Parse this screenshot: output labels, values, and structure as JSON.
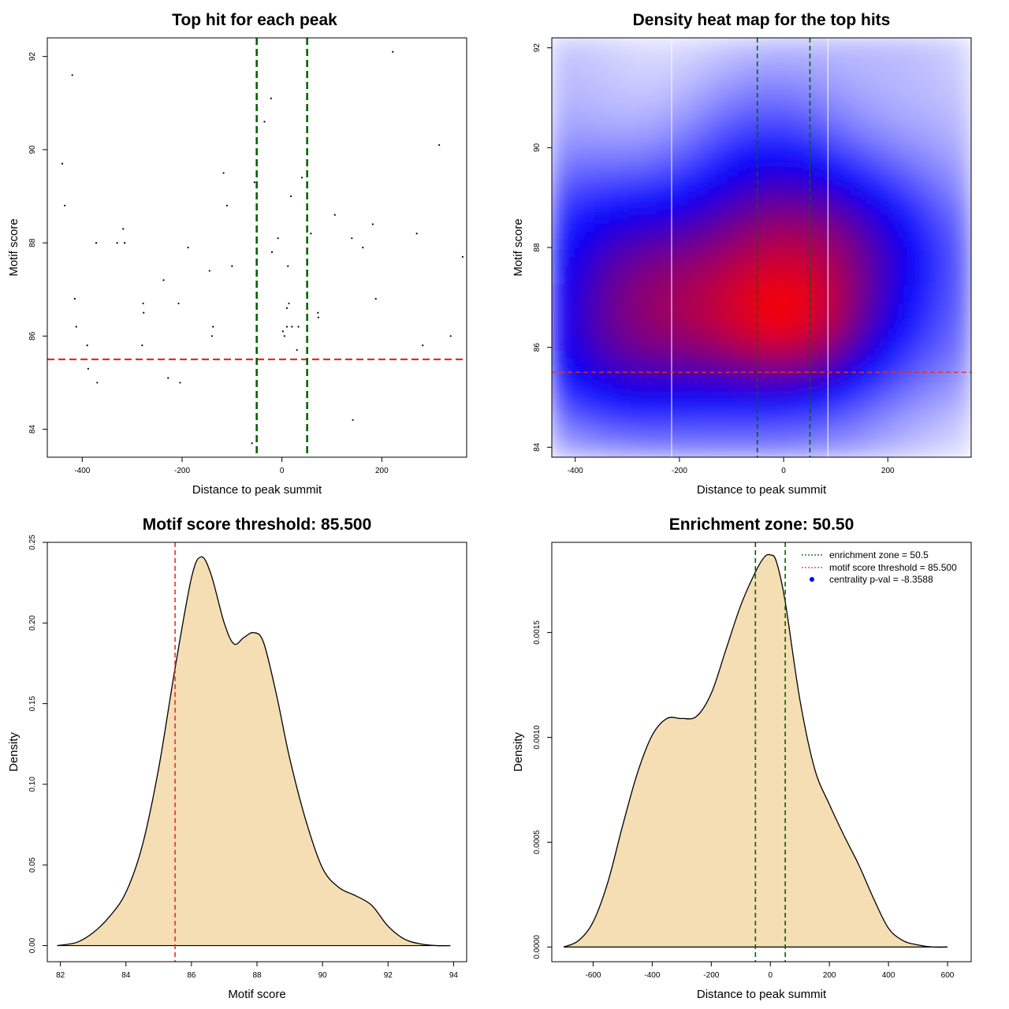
{
  "colors": {
    "threshold_line": "#e03030",
    "zone_line": "#006400",
    "density_fill": "#f5deb3",
    "heat_low": "#ffffff",
    "heat_mid": "#0000ff",
    "heat_high": "#ff0000",
    "centrality_point": "#0000ff"
  },
  "chart_data": [
    {
      "type": "scatter",
      "title": "Top hit for each peak",
      "xlabel": "Distance to peak summit",
      "ylabel": "Motif score",
      "xlim": [
        -470,
        370
      ],
      "ylim": [
        83.4,
        92.4
      ],
      "xticks": [
        -400,
        -200,
        0,
        200
      ],
      "xtick_labels": [
        "-400",
        "-200",
        "0",
        "200"
      ],
      "yticks": [
        84,
        86,
        88,
        90,
        92
      ],
      "ytick_labels": [
        "84",
        "86",
        "88",
        "90",
        "92"
      ],
      "hlines": [
        85.5
      ],
      "vlines": [
        -50.5,
        50.5
      ],
      "points": [
        [
          -420,
          91.6
        ],
        [
          -440,
          89.7
        ],
        [
          -435,
          88.8
        ],
        [
          -415,
          86.8
        ],
        [
          -412,
          86.2
        ],
        [
          -390,
          85.8
        ],
        [
          -388,
          85.3
        ],
        [
          -372,
          88.0
        ],
        [
          -370,
          85.0
        ],
        [
          -330,
          88.0
        ],
        [
          -318,
          88.3
        ],
        [
          -315,
          88.0
        ],
        [
          -278,
          86.7
        ],
        [
          -277,
          86.5
        ],
        [
          -280,
          85.8
        ],
        [
          -237,
          87.2
        ],
        [
          -228,
          85.1
        ],
        [
          -207,
          86.7
        ],
        [
          -204,
          85.0
        ],
        [
          -188,
          87.9
        ],
        [
          -145,
          87.4
        ],
        [
          -138,
          86.2
        ],
        [
          -140,
          86.0
        ],
        [
          -117,
          89.5
        ],
        [
          -110,
          88.8
        ],
        [
          -100,
          87.5
        ],
        [
          -55,
          89.3
        ],
        [
          -60,
          83.7
        ],
        [
          -35,
          90.6
        ],
        [
          -22,
          91.1
        ],
        [
          -20,
          87.8
        ],
        [
          -8,
          88.1
        ],
        [
          2,
          86.1
        ],
        [
          5,
          86.0
        ],
        [
          10,
          86.2
        ],
        [
          10,
          86.6
        ],
        [
          12,
          87.5
        ],
        [
          14,
          86.7
        ],
        [
          18,
          89.0
        ],
        [
          20,
          86.2
        ],
        [
          30,
          85.7
        ],
        [
          33,
          86.2
        ],
        [
          40,
          89.4
        ],
        [
          58,
          88.2
        ],
        [
          72,
          86.5
        ],
        [
          73,
          86.4
        ],
        [
          106,
          88.6
        ],
        [
          140,
          88.1
        ],
        [
          142,
          84.2
        ],
        [
          162,
          87.9
        ],
        [
          182,
          88.4
        ],
        [
          188,
          86.8
        ],
        [
          222,
          92.1
        ],
        [
          270,
          88.2
        ],
        [
          282,
          85.8
        ],
        [
          315,
          90.1
        ],
        [
          338,
          86.0
        ],
        [
          362,
          87.7
        ]
      ]
    },
    {
      "type": "heatmap",
      "title": "Density heat map for the top hits",
      "xlabel": "Distance to peak summit",
      "ylabel": "Motif score",
      "xlim": [
        -445,
        360
      ],
      "ylim": [
        83.8,
        92.2
      ],
      "xticks": [
        -400,
        -200,
        0,
        200
      ],
      "xtick_labels": [
        "-400",
        "-200",
        "0",
        "200"
      ],
      "yticks": [
        84,
        86,
        88,
        90,
        92
      ],
      "ytick_labels": [
        "84",
        "86",
        "88",
        "90",
        "92"
      ],
      "hlines": [
        85.5
      ],
      "vlines": [
        -50.5,
        50.5
      ],
      "white_vlines": [
        -215,
        85
      ],
      "colorscale": [
        "white",
        "blue",
        "red"
      ]
    },
    {
      "type": "area",
      "title": "Motif score threshold: 85.500",
      "xlabel": "Motif score",
      "ylabel": "Density",
      "xlim": [
        81.6,
        94.4
      ],
      "ylim": [
        -0.01,
        0.25
      ],
      "xticks": [
        82,
        84,
        86,
        88,
        90,
        92,
        94
      ],
      "xtick_labels": [
        "82",
        "84",
        "86",
        "88",
        "90",
        "92",
        "94"
      ],
      "yticks": [
        0,
        0.05,
        0.1,
        0.15,
        0.2,
        0.25
      ],
      "ytick_labels": [
        "0.00",
        "0.05",
        "0.10",
        "0.15",
        "0.20",
        "0.25"
      ],
      "vlines": [
        85.5
      ],
      "x": [
        81.9,
        82.5,
        83.0,
        83.5,
        84.0,
        84.5,
        85.0,
        85.5,
        86.0,
        86.3,
        86.6,
        87.0,
        87.3,
        87.6,
        87.9,
        88.2,
        88.6,
        89.0,
        89.5,
        90.0,
        90.5,
        91.0,
        91.5,
        92.0,
        92.5,
        93.0,
        93.5,
        93.9
      ],
      "y": [
        0.0,
        0.002,
        0.008,
        0.018,
        0.033,
        0.062,
        0.11,
        0.172,
        0.228,
        0.241,
        0.23,
        0.2,
        0.187,
        0.191,
        0.194,
        0.188,
        0.155,
        0.116,
        0.077,
        0.048,
        0.036,
        0.031,
        0.025,
        0.012,
        0.004,
        0.001,
        0.0,
        0.0
      ]
    },
    {
      "type": "area",
      "title": "Enrichment zone: 50.50",
      "xlabel": "Distance to peak summit",
      "ylabel": "Density",
      "xlim": [
        -740,
        680
      ],
      "ylim": [
        -7e-05,
        0.00193
      ],
      "xticks": [
        -600,
        -400,
        -200,
        0,
        200,
        400,
        600
      ],
      "xtick_labels": [
        "-600",
        "-400",
        "-200",
        "0",
        "200",
        "400",
        "600"
      ],
      "yticks": [
        0,
        0.0005,
        0.001,
        0.0015
      ],
      "ytick_labels": [
        "0.0000",
        "0.0005",
        "0.0010",
        "0.0015"
      ],
      "vlines": [
        -50.5,
        50.5
      ],
      "x": [
        -700,
        -650,
        -600,
        -550,
        -500,
        -450,
        -400,
        -350,
        -300,
        -250,
        -200,
        -150,
        -100,
        -50,
        -20,
        0,
        20,
        50,
        100,
        150,
        200,
        250,
        300,
        350,
        400,
        450,
        500,
        550,
        600
      ],
      "y": [
        0.0,
        3e-05,
        0.00012,
        0.00031,
        0.00058,
        0.00083,
        0.00101,
        0.00109,
        0.00109,
        0.0011,
        0.00121,
        0.00142,
        0.00163,
        0.00179,
        0.00186,
        0.00187,
        0.00184,
        0.00165,
        0.00118,
        0.00085,
        0.00068,
        0.00053,
        0.00039,
        0.00023,
        9e-05,
        3e-05,
        1e-05,
        0.0,
        0.0
      ],
      "legend": {
        "position": "top-right",
        "entries": [
          {
            "label": "enrichment zone = 50.5",
            "style": "dotted-line",
            "color": "#006400"
          },
          {
            "label": "motif score threshold = 85.500",
            "style": "dotted-line",
            "color": "#e03030"
          },
          {
            "label": "centrality p-val = -8.3588",
            "style": "point",
            "color": "#0000ff"
          }
        ]
      }
    }
  ]
}
